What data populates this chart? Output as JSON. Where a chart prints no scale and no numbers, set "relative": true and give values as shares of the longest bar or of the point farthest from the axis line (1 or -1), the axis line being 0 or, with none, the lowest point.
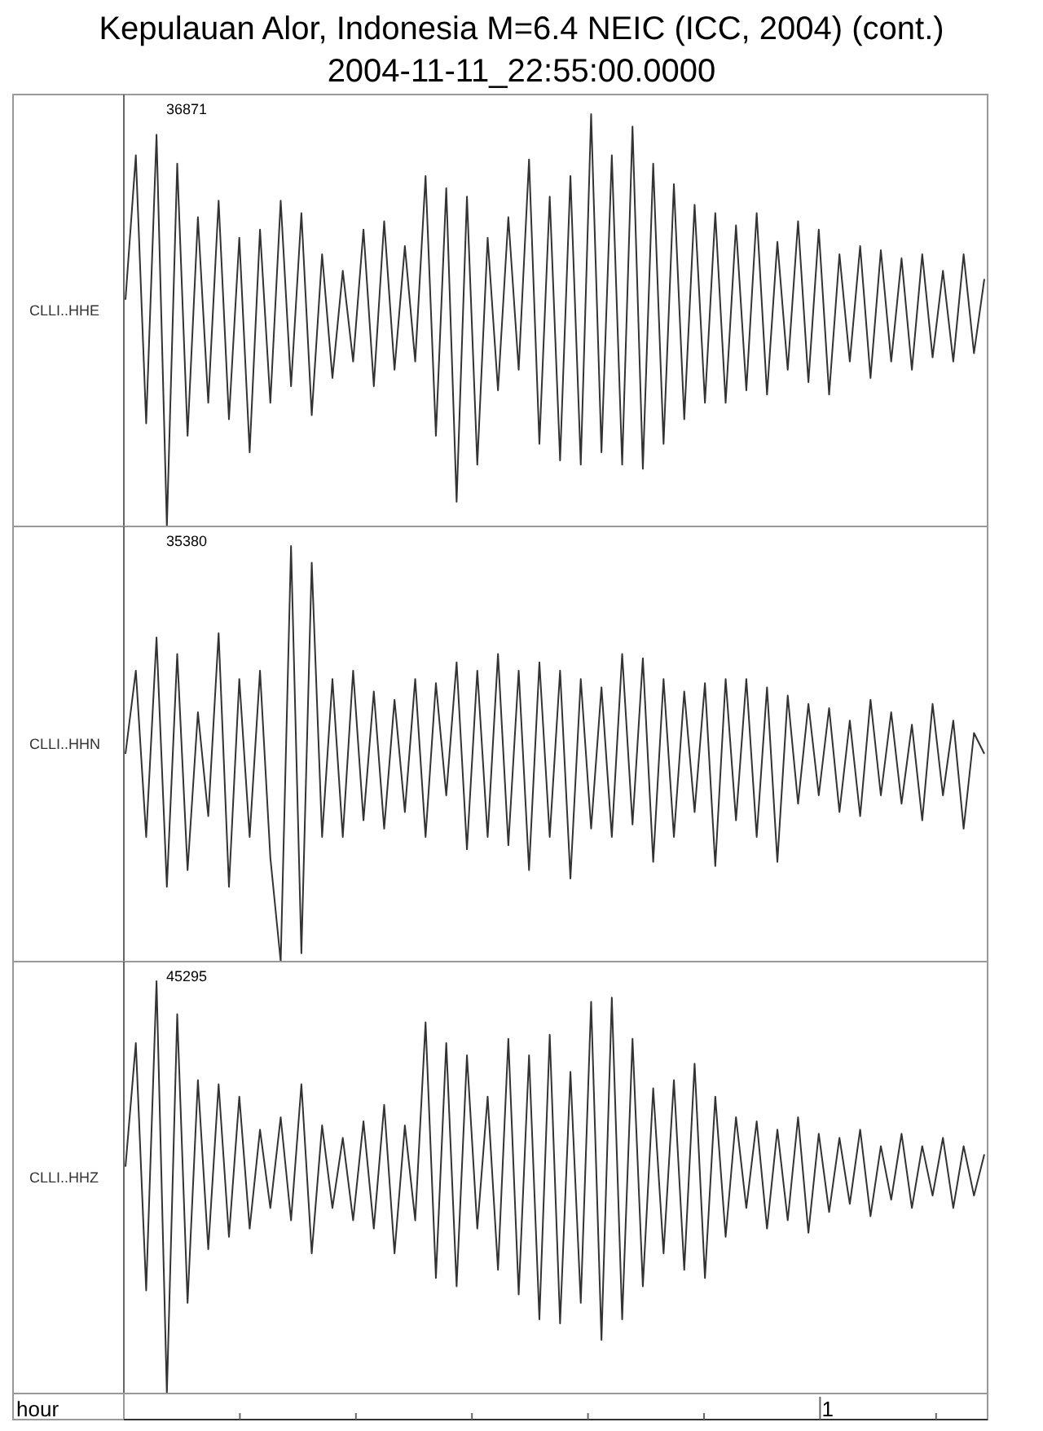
{
  "chart_data": [
    {
      "type": "line",
      "title": "Kepulauan Alor, Indonesia M=6.4 NEIC (ICC, 2004) (cont.)",
      "subtitle": "2004-11-11_22:55:00.0000",
      "relative": true,
      "tick_labels": false,
      "categories": [
        null,
        null,
        null,
        null,
        null,
        null,
        null,
        null,
        null,
        null,
        null,
        null,
        null,
        null,
        null,
        null,
        null,
        null,
        null,
        null,
        null,
        null,
        null,
        null,
        null,
        null,
        null,
        null,
        null,
        null,
        null,
        null,
        null,
        null,
        null,
        null,
        null,
        null,
        null,
        null,
        null,
        null,
        null,
        null,
        null,
        null,
        null,
        null,
        null,
        null,
        null,
        null,
        null,
        null,
        null,
        null,
        null,
        null,
        null,
        null,
        null,
        null,
        null,
        null,
        null,
        null,
        null,
        null,
        null,
        null,
        null,
        null,
        null,
        null,
        null,
        null,
        null,
        null,
        null,
        null,
        null,
        null,
        null,
        null
      ],
      "annotations": [
        "36871"
      ],
      "series": [
        {
          "name": "CLLI..HHE",
          "color": "#333333",
          "values": [
            0.55,
            0.9,
            0.25,
            0.95,
            0.0,
            0.88,
            0.22,
            0.75,
            0.3,
            0.79,
            0.26,
            0.7,
            0.18,
            0.72,
            0.3,
            0.79,
            0.34,
            0.76,
            0.27,
            0.66,
            0.36,
            0.62,
            0.4,
            0.72,
            0.34,
            0.74,
            0.38,
            0.68,
            0.4,
            0.85,
            0.22,
            0.82,
            0.06,
            0.8,
            0.15,
            0.7,
            0.33,
            0.75,
            0.38,
            0.89,
            0.2,
            0.8,
            0.16,
            0.85,
            0.15,
            1.0,
            0.18,
            0.9,
            0.15,
            0.97,
            0.14,
            0.88,
            0.2,
            0.83,
            0.26,
            0.78,
            0.3,
            0.76,
            0.3,
            0.73,
            0.33,
            0.76,
            0.32,
            0.69,
            0.38,
            0.74,
            0.35,
            0.72,
            0.32,
            0.66,
            0.4,
            0.68,
            0.36,
            0.67,
            0.4,
            0.65,
            0.38,
            0.66,
            0.41,
            0.62,
            0.4,
            0.66,
            0.42,
            0.6
          ]
        }
      ]
    },
    {
      "type": "line",
      "relative": true,
      "tick_labels": false,
      "categories": [
        null,
        null,
        null,
        null,
        null,
        null,
        null,
        null,
        null,
        null,
        null,
        null,
        null,
        null,
        null,
        null,
        null,
        null,
        null,
        null,
        null,
        null,
        null,
        null,
        null,
        null,
        null,
        null,
        null,
        null,
        null,
        null,
        null,
        null,
        null,
        null,
        null,
        null,
        null,
        null,
        null,
        null,
        null,
        null,
        null,
        null,
        null,
        null,
        null,
        null,
        null,
        null,
        null,
        null,
        null,
        null,
        null,
        null,
        null,
        null,
        null,
        null,
        null,
        null,
        null,
        null,
        null,
        null,
        null,
        null,
        null,
        null,
        null,
        null,
        null,
        null,
        null,
        null,
        null,
        null,
        null,
        null,
        null,
        null
      ],
      "annotations": [
        "35380"
      ],
      "series": [
        {
          "name": "CLLI..HHN",
          "color": "#333333",
          "values": [
            0.5,
            0.7,
            0.3,
            0.78,
            0.18,
            0.74,
            0.22,
            0.6,
            0.35,
            0.79,
            0.18,
            0.68,
            0.3,
            0.7,
            0.25,
            0.0,
            1.0,
            0.02,
            0.96,
            0.3,
            0.68,
            0.3,
            0.7,
            0.34,
            0.65,
            0.32,
            0.63,
            0.36,
            0.68,
            0.3,
            0.67,
            0.4,
            0.72,
            0.27,
            0.7,
            0.3,
            0.74,
            0.28,
            0.7,
            0.22,
            0.72,
            0.3,
            0.7,
            0.2,
            0.68,
            0.32,
            0.66,
            0.3,
            0.74,
            0.33,
            0.73,
            0.24,
            0.68,
            0.3,
            0.65,
            0.36,
            0.67,
            0.23,
            0.68,
            0.34,
            0.68,
            0.3,
            0.66,
            0.24,
            0.64,
            0.38,
            0.62,
            0.4,
            0.61,
            0.36,
            0.58,
            0.35,
            0.63,
            0.4,
            0.6,
            0.38,
            0.57,
            0.34,
            0.62,
            0.4,
            0.58,
            0.32,
            0.55,
            0.5
          ]
        }
      ]
    },
    {
      "type": "line",
      "relative": true,
      "tick_labels": "x",
      "xlabel": "hour",
      "categories": [
        null,
        null,
        null,
        null,
        null,
        null,
        null,
        null,
        null,
        null,
        null,
        null,
        null,
        null,
        null,
        null,
        null,
        null,
        null,
        null,
        null,
        null,
        null,
        null,
        null,
        null,
        null,
        null,
        null,
        null,
        null,
        null,
        null,
        null,
        null,
        null,
        null,
        null,
        null,
        null,
        null,
        null,
        null,
        null,
        null,
        null,
        null,
        null,
        null,
        null,
        null,
        null,
        null,
        null,
        null,
        null,
        null,
        null,
        null,
        null,
        null,
        null,
        null,
        null,
        null,
        null,
        null,
        null,
        null,
        null,
        null,
        null,
        null,
        null,
        null,
        null,
        null,
        null,
        null,
        null,
        null,
        null,
        null,
        null
      ],
      "annotations": [
        "45295",
        "1"
      ],
      "series": [
        {
          "name": "CLLI..HHZ",
          "color": "#333333",
          "values": [
            0.55,
            0.85,
            0.25,
            1.0,
            0.0,
            0.92,
            0.22,
            0.76,
            0.35,
            0.75,
            0.38,
            0.72,
            0.4,
            0.64,
            0.45,
            0.67,
            0.42,
            0.75,
            0.34,
            0.65,
            0.45,
            0.62,
            0.42,
            0.66,
            0.4,
            0.7,
            0.34,
            0.65,
            0.42,
            0.9,
            0.28,
            0.85,
            0.26,
            0.82,
            0.4,
            0.72,
            0.3,
            0.86,
            0.24,
            0.82,
            0.18,
            0.87,
            0.17,
            0.78,
            0.22,
            0.95,
            0.13,
            0.96,
            0.18,
            0.86,
            0.26,
            0.74,
            0.34,
            0.76,
            0.3,
            0.8,
            0.28,
            0.72,
            0.38,
            0.67,
            0.45,
            0.66,
            0.4,
            0.64,
            0.42,
            0.67,
            0.39,
            0.63,
            0.44,
            0.62,
            0.46,
            0.64,
            0.43,
            0.6,
            0.47,
            0.63,
            0.45,
            0.6,
            0.48,
            0.62,
            0.45,
            0.6,
            0.48,
            0.58
          ]
        }
      ]
    }
  ]
}
